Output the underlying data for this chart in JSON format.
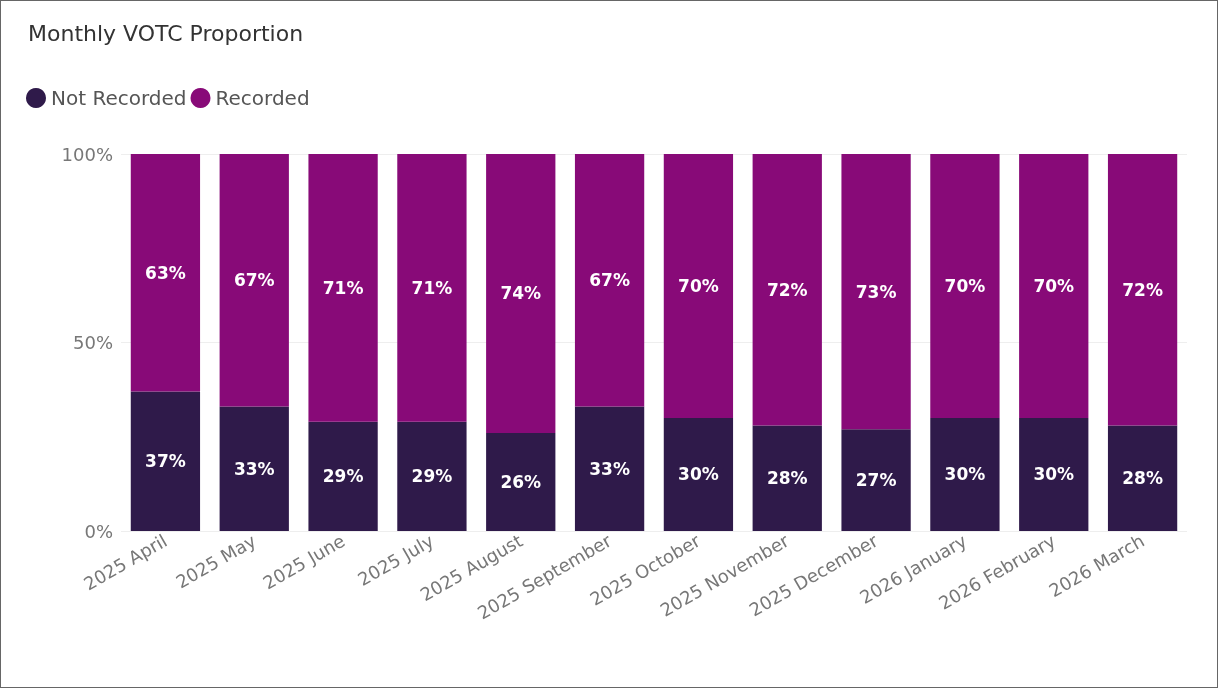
{
  "chart_data": {
    "type": "bar",
    "title": "Monthly VOTC Proportion",
    "categories": [
      "2025 April",
      "2025 May",
      "2025 June",
      "2025 July",
      "2025 August",
      "2025 September",
      "2025 October",
      "2025 November",
      "2025 December",
      "2026 January",
      "2026 February",
      "2026 March"
    ],
    "series": [
      {
        "name": "Not Recorded",
        "color": "#2f1a4a",
        "values": [
          37,
          33,
          29,
          29,
          26,
          33,
          30,
          28,
          27,
          30,
          30,
          28
        ],
        "value_labels": [
          "37%",
          "33%",
          "29%",
          "29%",
          "26%",
          "33%",
          "30%",
          "28%",
          "27%",
          "30%",
          "30%",
          "28%"
        ]
      },
      {
        "name": "Recorded",
        "color": "#880a78",
        "values": [
          63,
          67,
          71,
          71,
          74,
          67,
          70,
          72,
          73,
          70,
          70,
          72
        ],
        "value_labels": [
          "63%",
          "67%",
          "71%",
          "71%",
          "74%",
          "67%",
          "70%",
          "72%",
          "73%",
          "70%",
          "70%",
          "72%"
        ]
      }
    ],
    "stacked": true,
    "ylim": [
      0,
      100
    ],
    "yticks": [
      {
        "value": 0,
        "label": "0%"
      },
      {
        "value": 50,
        "label": "50%"
      },
      {
        "value": 100,
        "label": "100%"
      }
    ],
    "grid": "y",
    "legend": "top left"
  }
}
